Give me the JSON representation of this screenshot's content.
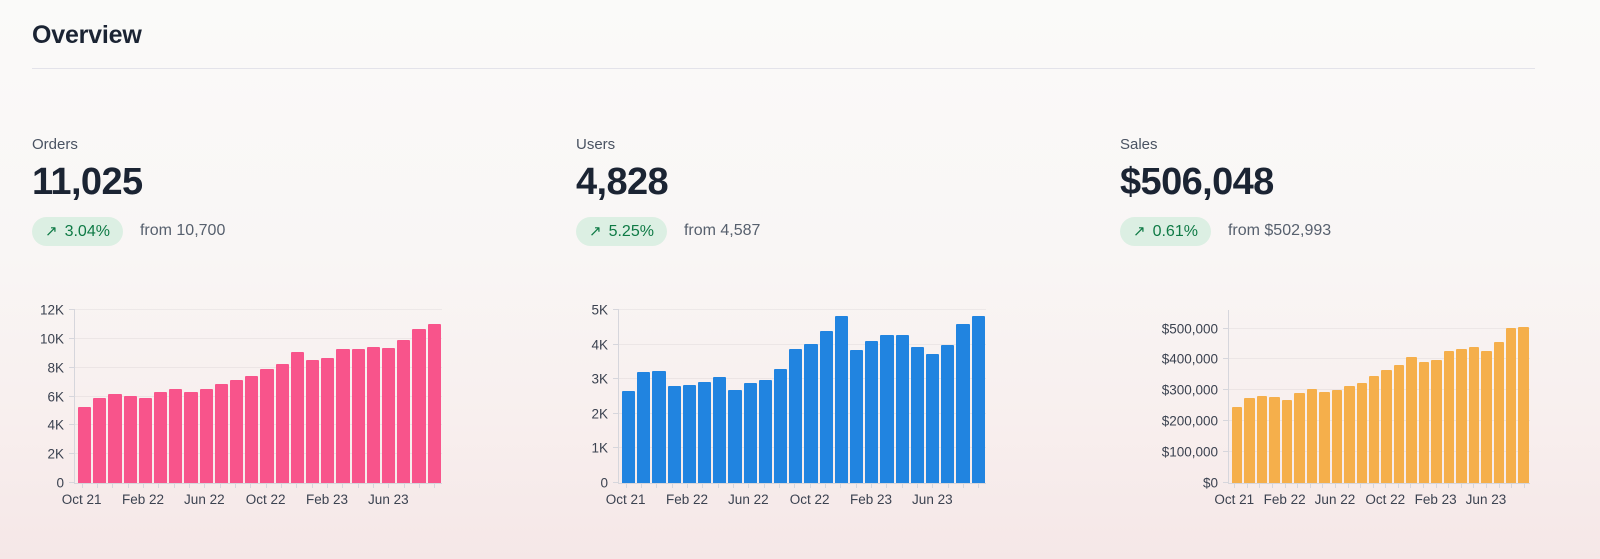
{
  "page": {
    "title": "Overview"
  },
  "colors": {
    "orders_bar": "#F8548B",
    "users_bar": "#2184E0",
    "sales_bar": "#F5AF4B",
    "badge_bg": "#DCEFE3",
    "badge_text": "#0E7A45",
    "heading_text": "#1B2433",
    "muted_text": "#57606E"
  },
  "metrics": [
    {
      "label": "Orders",
      "value": "11,025",
      "trend_icon": "↗",
      "change": "3.04%",
      "from_text": "from 10,700"
    },
    {
      "label": "Users",
      "value": "4,828",
      "trend_icon": "↗",
      "change": "5.25%",
      "from_text": "from 4,587"
    },
    {
      "label": "Sales",
      "value": "$506,048",
      "trend_icon": "↗",
      "change": "0.61%",
      "from_text": "from $502,993"
    }
  ],
  "chart_data": [
    {
      "type": "bar",
      "title": "Orders by month",
      "bar_color": "#F8548B",
      "x": [
        "Oct 21",
        "Nov 21",
        "Dec 21",
        "Jan 22",
        "Feb 22",
        "Mar 22",
        "Apr 22",
        "May 22",
        "Jun 22",
        "Jul 22",
        "Aug 22",
        "Sep 22",
        "Oct 22",
        "Nov 22",
        "Dec 22",
        "Jan 23",
        "Feb 23",
        "Mar 23",
        "Apr 23",
        "May 23",
        "Jun 23",
        "Jul 23",
        "Aug 23",
        "Sep 23"
      ],
      "values": [
        5300,
        5900,
        6150,
        6050,
        5900,
        6300,
        6550,
        6300,
        6500,
        6850,
        7150,
        7450,
        7900,
        8250,
        9100,
        8550,
        8650,
        9300,
        9300,
        9400,
        9350,
        9950,
        10700,
        11025
      ],
      "ylim": [
        0,
        12000
      ],
      "yticks": [
        {
          "value": 0,
          "label": "0"
        },
        {
          "value": 2000,
          "label": "2K"
        },
        {
          "value": 4000,
          "label": "4K"
        },
        {
          "value": 6000,
          "label": "6K"
        },
        {
          "value": 8000,
          "label": "8K"
        },
        {
          "value": 10000,
          "label": "10K"
        },
        {
          "value": 12000,
          "label": "12K"
        }
      ],
      "xticks": [
        {
          "index": 0,
          "label": "Oct 21"
        },
        {
          "index": 4,
          "label": "Feb 22"
        },
        {
          "index": 8,
          "label": "Jun 22"
        },
        {
          "index": 12,
          "label": "Oct 22"
        },
        {
          "index": 16,
          "label": "Feb 23"
        },
        {
          "index": 20,
          "label": "Jun 23"
        }
      ],
      "grid": true,
      "legend": false
    },
    {
      "type": "bar",
      "title": "Users by month",
      "bar_color": "#2184E0",
      "x": [
        "Oct 21",
        "Nov 21",
        "Dec 21",
        "Jan 22",
        "Feb 22",
        "Mar 22",
        "Apr 22",
        "May 22",
        "Jun 22",
        "Jul 22",
        "Aug 22",
        "Sep 22",
        "Oct 22",
        "Nov 22",
        "Dec 22",
        "Jan 23",
        "Feb 23",
        "Mar 23",
        "Apr 23",
        "May 23",
        "Jun 23",
        "Jul 23",
        "Aug 23",
        "Sep 23"
      ],
      "values": [
        2650,
        3200,
        3250,
        2800,
        2830,
        2920,
        3070,
        2700,
        2880,
        2970,
        3300,
        3870,
        4020,
        4400,
        4820,
        3830,
        4110,
        4270,
        4270,
        3920,
        3730,
        4000,
        4587,
        4828
      ],
      "ylim": [
        0,
        5000
      ],
      "yticks": [
        {
          "value": 0,
          "label": "0"
        },
        {
          "value": 1000,
          "label": "1K"
        },
        {
          "value": 2000,
          "label": "2K"
        },
        {
          "value": 3000,
          "label": "3K"
        },
        {
          "value": 4000,
          "label": "4K"
        },
        {
          "value": 5000,
          "label": "5K"
        }
      ],
      "xticks": [
        {
          "index": 0,
          "label": "Oct 21"
        },
        {
          "index": 4,
          "label": "Feb 22"
        },
        {
          "index": 8,
          "label": "Jun 22"
        },
        {
          "index": 12,
          "label": "Oct 22"
        },
        {
          "index": 16,
          "label": "Feb 23"
        },
        {
          "index": 20,
          "label": "Jun 23"
        }
      ],
      "grid": true,
      "legend": false
    },
    {
      "type": "bar",
      "title": "Sales by month",
      "bar_color": "#F5AF4B",
      "x": [
        "Oct 21",
        "Nov 21",
        "Dec 21",
        "Jan 22",
        "Feb 22",
        "Mar 22",
        "Apr 22",
        "May 22",
        "Jun 22",
        "Jul 22",
        "Aug 22",
        "Sep 22",
        "Oct 22",
        "Nov 22",
        "Dec 22",
        "Jan 23",
        "Feb 23",
        "Mar 23",
        "Apr 23",
        "May 23",
        "Jun 23",
        "Jul 23",
        "Aug 23",
        "Sep 23"
      ],
      "values": [
        245000,
        276000,
        283000,
        279000,
        269000,
        292000,
        305000,
        296000,
        301000,
        315000,
        324000,
        347000,
        366000,
        382000,
        409000,
        391000,
        398000,
        428000,
        434000,
        441000,
        428000,
        457000,
        502993,
        506048
      ],
      "ylim": [
        0,
        560000
      ],
      "yticks": [
        {
          "value": 0,
          "label": "$0"
        },
        {
          "value": 100000,
          "label": "$100,000"
        },
        {
          "value": 200000,
          "label": "$200,000"
        },
        {
          "value": 300000,
          "label": "$300,000"
        },
        {
          "value": 400000,
          "label": "$400,000"
        },
        {
          "value": 500000,
          "label": "$500,000"
        }
      ],
      "xticks": [
        {
          "index": 0,
          "label": "Oct 21"
        },
        {
          "index": 4,
          "label": "Feb 22"
        },
        {
          "index": 8,
          "label": "Jun 22"
        },
        {
          "index": 12,
          "label": "Oct 22"
        },
        {
          "index": 16,
          "label": "Feb 23"
        },
        {
          "index": 20,
          "label": "Jun 23"
        }
      ],
      "grid": true,
      "legend": false
    }
  ]
}
